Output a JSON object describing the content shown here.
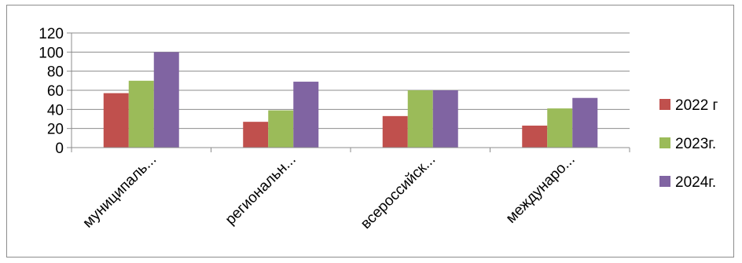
{
  "chart_data": {
    "type": "bar",
    "categories": [
      "муниципаль...",
      "региональн...",
      "всероссийск...",
      "междунаро..."
    ],
    "series": [
      {
        "name": "2022 г",
        "color": "#c0504d",
        "values": [
          57,
          27,
          33,
          23
        ]
      },
      {
        "name": "2023г.",
        "color": "#9bbb59",
        "values": [
          70,
          39,
          60,
          41
        ]
      },
      {
        "name": "2024г.",
        "color": "#8064a2",
        "values": [
          100,
          69,
          60,
          52
        ]
      }
    ],
    "title": "",
    "xlabel": "",
    "ylabel": "",
    "ylim": [
      0,
      120
    ],
    "yticks": [
      "0",
      "20",
      "40",
      "60",
      "80",
      "100",
      "120"
    ],
    "grid": true,
    "legend_position": "right",
    "colors": {
      "gridline": "#8c8c8c",
      "border": "#8c8c8c",
      "axis": "#8c8c8c"
    }
  }
}
